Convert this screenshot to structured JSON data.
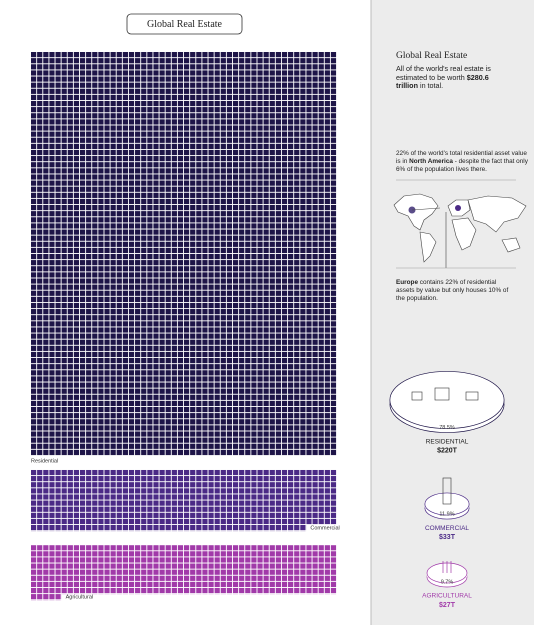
{
  "chart_data": {
    "type": "waffle",
    "title": "Global Real Estate",
    "categories": [
      "Residential",
      "Commercial",
      "Agricultural"
    ],
    "values": [
      220,
      33,
      27
    ],
    "value_labels": [
      "$220T",
      "$33T",
      "$27T"
    ],
    "shares": [
      78.5,
      11.9,
      9.7
    ],
    "share_labels": [
      "78.5%",
      "11.9%",
      "9.7%"
    ],
    "sidebar_labels": [
      "RESIDENTIAL",
      "COMMERCIAL",
      "AGRICULTURAL"
    ],
    "colors": [
      "#1e1548",
      "#4b2a86",
      "#a13aa9"
    ],
    "sidebar": {
      "title": "Global Real Estate",
      "intro": [
        "All of the world's real estate is estimated to be worth ",
        "$280.6 trillion",
        " in total."
      ],
      "north_america": [
        "22% of the world's total residential asset value is in ",
        "North America",
        " - despite the fact that only 6% of the population lives there."
      ],
      "europe": [
        "Europe",
        " contains 22% of residential assets by value but only houses 10% of the population."
      ]
    }
  }
}
